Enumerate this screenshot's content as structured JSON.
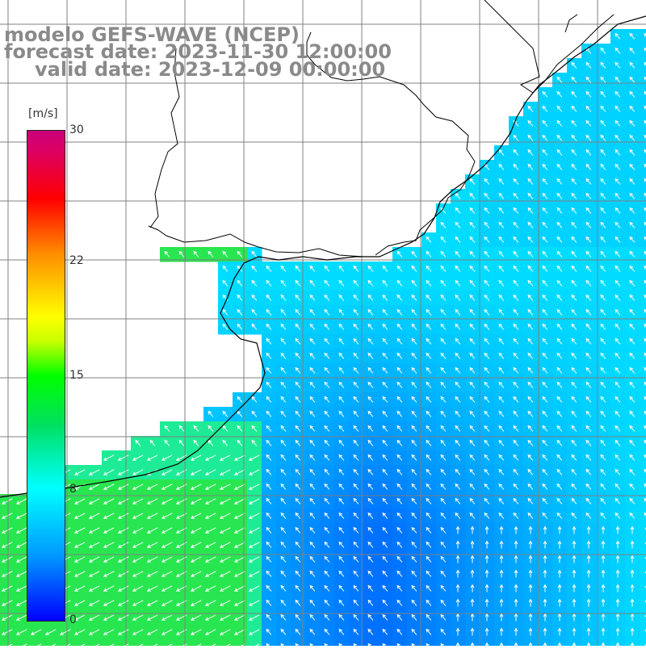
{
  "header": {
    "title_line1": "modelo GEFS-WAVE (NCEP)",
    "title_line2": "forecast date: 2023-11-30 12:00:00",
    "title_line3": "valid date: 2023-12-09 00:00:00"
  },
  "colorbar": {
    "unit": "[m/s]",
    "ticks": [
      {
        "label": "30",
        "value": 30
      },
      {
        "label": "22",
        "value": 22
      },
      {
        "label": "15",
        "value": 15
      },
      {
        "label": "8",
        "value": 8
      },
      {
        "label": "0",
        "value": 0
      }
    ],
    "range": [
      0,
      30
    ]
  },
  "colors": {
    "land": "#ffffff",
    "coast": "#000000",
    "grid": "#808080",
    "arrow": "#ffffff",
    "title": "#8a8a8a"
  }
}
